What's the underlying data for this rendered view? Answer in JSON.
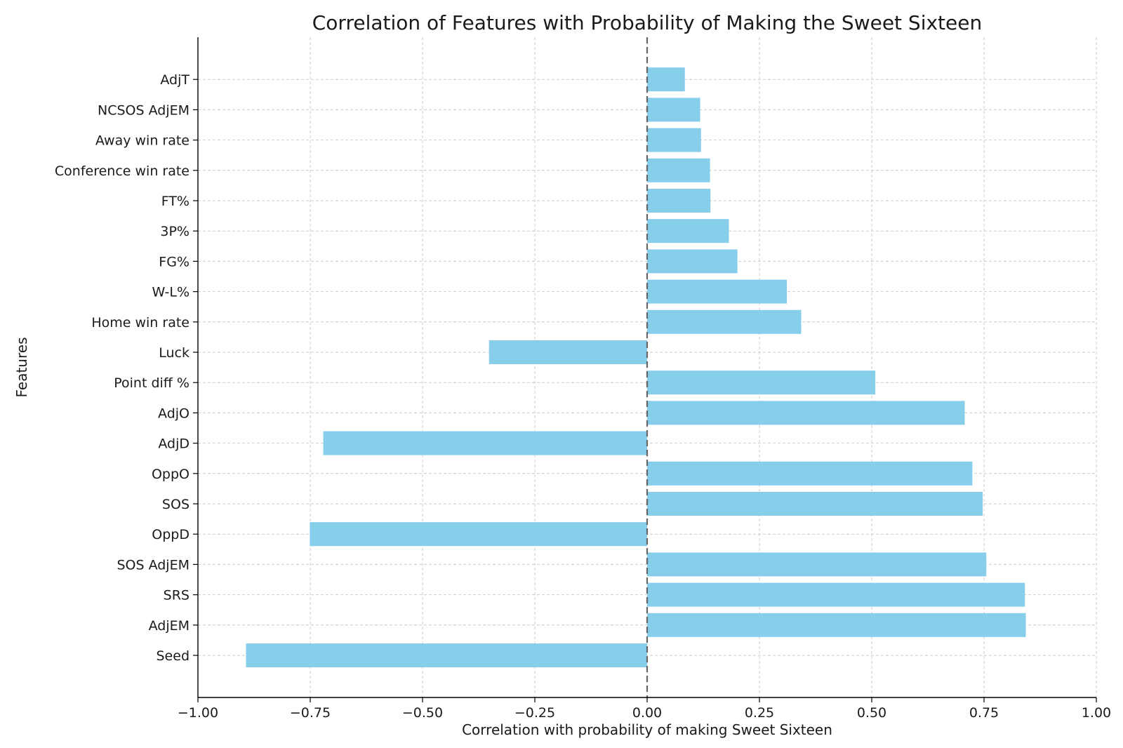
{
  "chart_data": {
    "type": "bar",
    "orientation": "horizontal",
    "title": "Correlation of Features with Probability of Making the Sweet Sixteen",
    "xlabel": "Correlation with probability of making Sweet Sixteen",
    "ylabel": "Features",
    "xlim": [
      -1.0,
      1.0
    ],
    "x_ticks": [
      -1.0,
      -0.75,
      -0.5,
      -0.25,
      0.0,
      0.25,
      0.5,
      0.75,
      1.0
    ],
    "x_tick_labels": [
      "−1.00",
      "−0.75",
      "−0.50",
      "−0.25",
      "0.00",
      "0.25",
      "0.50",
      "0.75",
      "1.00"
    ],
    "grid": true,
    "reference_line": {
      "x": 0.0,
      "style": "dashed"
    },
    "bar_color": "#87ceeb",
    "categories": [
      "Seed",
      "AdjEM",
      "SRS",
      "SOS AdjEM",
      "OppD",
      "SOS",
      "OppO",
      "AdjD",
      "AdjO",
      "Point diff %",
      "Luck",
      "Home win rate",
      "W-L%",
      "FG%",
      "3P%",
      "FT%",
      "Conference win rate",
      "Away win rate",
      "NCSOS AdjEM",
      "AdjT"
    ],
    "values": [
      -0.893,
      0.843,
      0.841,
      0.755,
      -0.751,
      0.747,
      0.724,
      -0.721,
      0.707,
      0.508,
      -0.352,
      0.343,
      0.311,
      0.201,
      0.182,
      0.141,
      0.14,
      0.12,
      0.118,
      0.084
    ]
  }
}
